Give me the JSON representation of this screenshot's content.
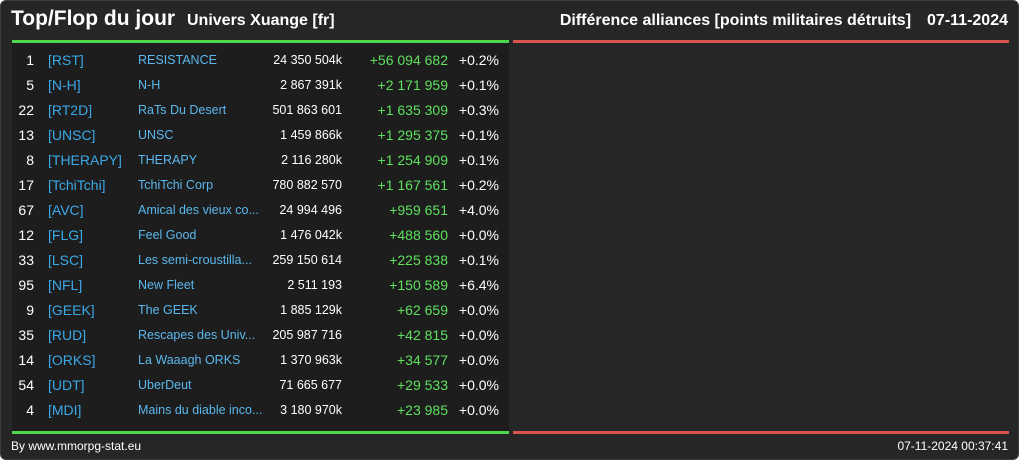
{
  "header": {
    "title": "Top/Flop du jour",
    "universe": "Univers Xuange [fr]",
    "category": "Différence alliances [points militaires détruits]",
    "date": "07-11-2024"
  },
  "colors": {
    "background": "#262626",
    "top_bar": "#4cd84c",
    "flop_bar": "#d9534f",
    "tag": "#3aa9e8",
    "positive_diff": "#5fe05f"
  },
  "top": [
    {
      "rank": "1",
      "tag": "[RST]",
      "name": "RESISTANCE",
      "points": "24 350 504k",
      "diff": "+56 094 682",
      "pct": "+0.2%"
    },
    {
      "rank": "5",
      "tag": "[N-H]",
      "name": "N-H",
      "points": "2 867 391k",
      "diff": "+2 171 959",
      "pct": "+0.1%"
    },
    {
      "rank": "22",
      "tag": "[RT2D]",
      "name": "RaTs Du Desert",
      "points": "501 863 601",
      "diff": "+1 635 309",
      "pct": "+0.3%"
    },
    {
      "rank": "13",
      "tag": "[UNSC]",
      "name": "UNSC",
      "points": "1 459 866k",
      "diff": "+1 295 375",
      "pct": "+0.1%"
    },
    {
      "rank": "8",
      "tag": "[THERAPY]",
      "name": "THERAPY",
      "points": "2 116 280k",
      "diff": "+1 254 909",
      "pct": "+0.1%"
    },
    {
      "rank": "17",
      "tag": "[TchiTchi]",
      "name": "TchiTchi Corp",
      "points": "780 882 570",
      "diff": "+1 167 561",
      "pct": "+0.2%"
    },
    {
      "rank": "67",
      "tag": "[AVC]",
      "name": "Amical des vieux co...",
      "points": "24 994 496",
      "diff": "+959 651",
      "pct": "+4.0%"
    },
    {
      "rank": "12",
      "tag": "[FLG]",
      "name": "Feel Good",
      "points": "1 476 042k",
      "diff": "+488 560",
      "pct": "+0.0%"
    },
    {
      "rank": "33",
      "tag": "[LSC]",
      "name": "Les semi-croustilla...",
      "points": "259 150 614",
      "diff": "+225 838",
      "pct": "+0.1%"
    },
    {
      "rank": "95",
      "tag": "[NFL]",
      "name": "New Fleet",
      "points": "2 511 193",
      "diff": "+150 589",
      "pct": "+6.4%"
    },
    {
      "rank": "9",
      "tag": "[GEEK]",
      "name": "The GEEK",
      "points": "1 885 129k",
      "diff": "+62 659",
      "pct": "+0.0%"
    },
    {
      "rank": "35",
      "tag": "[RUD]",
      "name": "Rescapes des Univ...",
      "points": "205 987 716",
      "diff": "+42 815",
      "pct": "+0.0%"
    },
    {
      "rank": "14",
      "tag": "[ORKS]",
      "name": "La Waaagh ORKS",
      "points": "1 370 963k",
      "diff": "+34 577",
      "pct": "+0.0%"
    },
    {
      "rank": "54",
      "tag": "[UDT]",
      "name": "UberDeut",
      "points": "71 665 677",
      "diff": "+29 533",
      "pct": "+0.0%"
    },
    {
      "rank": "4",
      "tag": "[MDI]",
      "name": "Mains du diable inco...",
      "points": "3 180 970k",
      "diff": "+23 985",
      "pct": "+0.0%"
    }
  ],
  "footer": {
    "source": "By www.mmorpg-stat.eu",
    "timestamp": "07-11-2024 00:37:41"
  }
}
